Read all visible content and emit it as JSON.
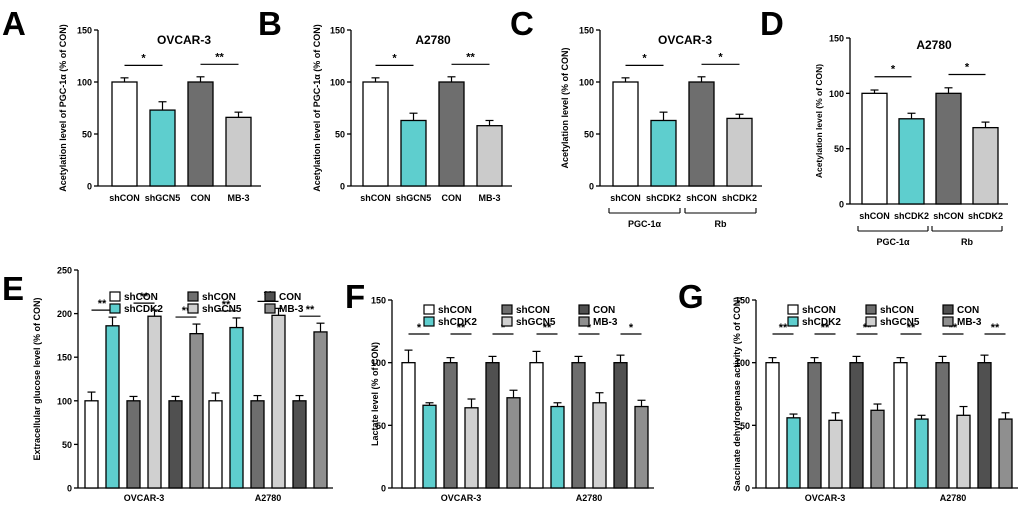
{
  "colors": {
    "white": "#ffffff",
    "teal": "#5ecece",
    "dark_gray": "#6e6e6e",
    "light_gray": "#cbcbcb",
    "very_light_gray": "#d0d0d0",
    "mid_gray": "#8f8f8f",
    "darkest_gray": "#505050",
    "axis": "#000000"
  },
  "chart_data": [
    {
      "panel": "A",
      "type": "bar",
      "title": "OVCAR-3",
      "ylabel": "Acetylation level of PGC-1α (% of CON)",
      "ylim": [
        0,
        150
      ],
      "yticks": [
        0,
        50,
        100,
        150
      ],
      "categories": [
        "shCON",
        "shGCN5",
        "CON",
        "MB-3"
      ],
      "values": [
        100,
        73,
        100,
        66
      ],
      "errors": [
        4,
        8,
        5,
        5
      ],
      "colors": [
        "#ffffff",
        "#5ecece",
        "#6e6e6e",
        "#cbcbcb"
      ],
      "significance": [
        {
          "from": 0,
          "to": 1,
          "label": "*"
        },
        {
          "from": 2,
          "to": 3,
          "label": "**"
        }
      ]
    },
    {
      "panel": "B",
      "type": "bar",
      "title": "A2780",
      "ylabel": "Acetylation level of PGC-1α (% of CON)",
      "ylim": [
        0,
        150
      ],
      "yticks": [
        0,
        50,
        100,
        150
      ],
      "categories": [
        "shCON",
        "shGCN5",
        "CON",
        "MB-3"
      ],
      "values": [
        100,
        63,
        100,
        58
      ],
      "errors": [
        4,
        7,
        5,
        5
      ],
      "colors": [
        "#ffffff",
        "#5ecece",
        "#6e6e6e",
        "#cbcbcb"
      ],
      "significance": [
        {
          "from": 0,
          "to": 1,
          "label": "*"
        },
        {
          "from": 2,
          "to": 3,
          "label": "**"
        }
      ]
    },
    {
      "panel": "C",
      "type": "bar",
      "title": "OVCAR-3",
      "ylabel": "Acetylation level (% of CON)",
      "ylim": [
        0,
        150
      ],
      "yticks": [
        0,
        50,
        100,
        150
      ],
      "categories": [
        "shCON",
        "shCDK2",
        "shCON",
        "shCDK2"
      ],
      "values": [
        100,
        63,
        100,
        65
      ],
      "errors": [
        4,
        8,
        5,
        4
      ],
      "colors": [
        "#ffffff",
        "#5ecece",
        "#6e6e6e",
        "#cbcbcb"
      ],
      "groups": [
        "PGC-1α",
        "Rb"
      ],
      "significance": [
        {
          "from": 0,
          "to": 1,
          "label": "*"
        },
        {
          "from": 2,
          "to": 3,
          "label": "*"
        }
      ]
    },
    {
      "panel": "D",
      "type": "bar",
      "title": "A2780",
      "ylabel": "Acetylation level (% of CON)",
      "ylim": [
        0,
        150
      ],
      "yticks": [
        0,
        50,
        100,
        150
      ],
      "categories": [
        "shCON",
        "shCDK2",
        "shCON",
        "shCDK2"
      ],
      "values": [
        100,
        77,
        100,
        69
      ],
      "errors": [
        3,
        5,
        5,
        5
      ],
      "colors": [
        "#ffffff",
        "#5ecece",
        "#6e6e6e",
        "#cbcbcb"
      ],
      "groups": [
        "PGC-1α",
        "Rb"
      ],
      "significance": [
        {
          "from": 0,
          "to": 1,
          "label": "*"
        },
        {
          "from": 2,
          "to": 3,
          "label": "*"
        }
      ]
    },
    {
      "panel": "E",
      "type": "bar",
      "ylabel": "Extracellular glucose level (% of CON)",
      "ylim": [
        0,
        250
      ],
      "yticks": [
        0,
        50,
        100,
        150,
        200,
        250
      ],
      "groups": [
        "OVCAR-3",
        "A2780"
      ],
      "series": [
        {
          "name": "shCON",
          "values": [
            100,
            100
          ],
          "errors": [
            10,
            9
          ]
        },
        {
          "name": "shCDK2",
          "values": [
            186,
            184
          ],
          "errors": [
            10,
            11
          ]
        },
        {
          "name": "shCON",
          "values": [
            100,
            100
          ],
          "errors": [
            5,
            6
          ]
        },
        {
          "name": "shGCN5",
          "values": [
            197,
            198
          ],
          "errors": [
            7,
            8
          ]
        },
        {
          "name": "CON",
          "values": [
            100,
            100
          ],
          "errors": [
            5,
            6
          ]
        },
        {
          "name": "MB-3",
          "values": [
            177,
            179
          ],
          "errors": [
            11,
            10
          ]
        }
      ],
      "colors": [
        "#ffffff",
        "#5ecece",
        "#6e6e6e",
        "#d0d0d0",
        "#505050",
        "#8f8f8f"
      ],
      "significance_labels": [
        "**",
        "**",
        "**",
        "**",
        "**",
        "**"
      ]
    },
    {
      "panel": "F",
      "type": "bar",
      "ylabel": "Lactate level (% of CON)",
      "ylim": [
        0,
        150
      ],
      "yticks": [
        0,
        50,
        100,
        150
      ],
      "groups": [
        "OVCAR-3",
        "A2780"
      ],
      "series": [
        {
          "name": "shCON",
          "values": [
            100,
            100
          ],
          "errors": [
            10,
            9
          ]
        },
        {
          "name": "shCDK2",
          "values": [
            66,
            65
          ],
          "errors": [
            2,
            3
          ]
        },
        {
          "name": "shCON",
          "values": [
            100,
            100
          ],
          "errors": [
            4,
            5
          ]
        },
        {
          "name": "shGCN5",
          "values": [
            64,
            68
          ],
          "errors": [
            7,
            8
          ]
        },
        {
          "name": "CON",
          "values": [
            100,
            100
          ],
          "errors": [
            5,
            6
          ]
        },
        {
          "name": "MB-3",
          "values": [
            72,
            65
          ],
          "errors": [
            6,
            5
          ]
        }
      ],
      "colors": [
        "#ffffff",
        "#5ecece",
        "#6e6e6e",
        "#d0d0d0",
        "#505050",
        "#8f8f8f"
      ],
      "significance_labels": [
        "*",
        "**",
        "*",
        "**",
        "*",
        "*"
      ]
    },
    {
      "panel": "G",
      "type": "bar",
      "ylabel": "Saccinate dehydrogenase activity (% of CON)",
      "ylim": [
        0,
        150
      ],
      "yticks": [
        0,
        50,
        100,
        150
      ],
      "groups": [
        "OVCAR-3",
        "A2780"
      ],
      "series": [
        {
          "name": "shCON",
          "values": [
            100,
            100
          ],
          "errors": [
            4,
            4
          ]
        },
        {
          "name": "shCDK2",
          "values": [
            56,
            55
          ],
          "errors": [
            3,
            3
          ]
        },
        {
          "name": "shCON",
          "values": [
            100,
            100
          ],
          "errors": [
            4,
            5
          ]
        },
        {
          "name": "shGCN5",
          "values": [
            54,
            58
          ],
          "errors": [
            6,
            7
          ]
        },
        {
          "name": "CON",
          "values": [
            100,
            100
          ],
          "errors": [
            5,
            6
          ]
        },
        {
          "name": "MB-3",
          "values": [
            62,
            55
          ],
          "errors": [
            5,
            5
          ]
        }
      ],
      "colors": [
        "#ffffff",
        "#5ecece",
        "#6e6e6e",
        "#d0d0d0",
        "#505050",
        "#8f8f8f"
      ],
      "significance_labels": [
        "**",
        "**",
        "**",
        "**",
        "**",
        "**"
      ]
    }
  ]
}
